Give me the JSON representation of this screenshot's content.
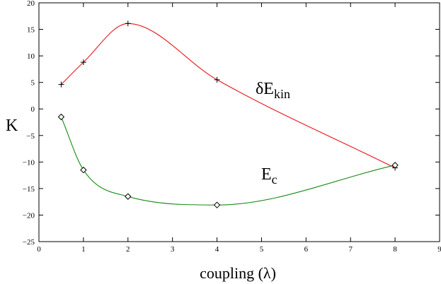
{
  "chart_data": {
    "type": "scatter",
    "title": "",
    "xlabel": "coupling (λ)",
    "ylabel": "K",
    "xlim": [
      0,
      9
    ],
    "ylim": [
      -25,
      20
    ],
    "x_ticks": [
      "0",
      "1",
      "2",
      "3",
      "4",
      "5",
      "6",
      "7",
      "8",
      "9"
    ],
    "y_ticks": [
      "20",
      "15",
      "10",
      "5",
      "0",
      "−5",
      "−10",
      "−15",
      "−20",
      "−25"
    ],
    "grid": false,
    "series": [
      {
        "name": "δE_kin",
        "marker": "plus",
        "color": "#e8141b",
        "x": [
          0.5,
          1,
          2,
          4,
          8
        ],
        "y": [
          4.6,
          8.8,
          16.1,
          5.5,
          -11.1
        ]
      },
      {
        "name": "E_c",
        "marker": "diamond",
        "color": "#1a8a1a",
        "x": [
          0.5,
          1,
          2,
          4,
          8
        ],
        "y": [
          -1.5,
          -11.5,
          -16.5,
          -18.1,
          -10.6
        ]
      }
    ],
    "annotations": [
      {
        "base": "δE",
        "sub": "kin"
      },
      {
        "base": "E",
        "sub": "c"
      }
    ]
  }
}
